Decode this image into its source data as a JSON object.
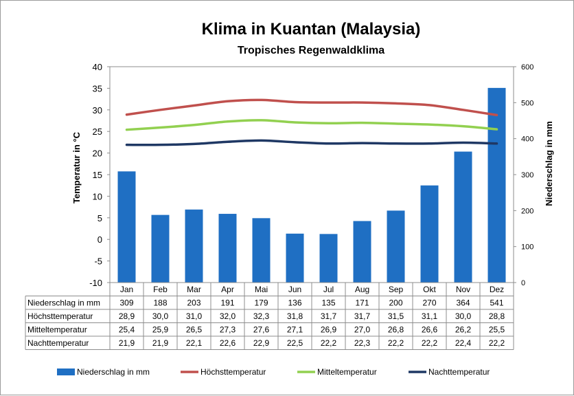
{
  "chart_data": {
    "type": "bar",
    "title": "Klima in Kuantan (Malaysia)",
    "subtitle": "Tropisches Regenwaldklima",
    "ylabel_left": "Temperatur in °C",
    "ylabel_right": "Niederschlag in mm",
    "ylim_left": [
      -10,
      40
    ],
    "yticks_left": [
      "40",
      "35",
      "30",
      "25",
      "20",
      "15",
      "10",
      "5",
      "0",
      "-5",
      "-10"
    ],
    "ylim_right": [
      0,
      600
    ],
    "yticks_right": [
      "600",
      "500",
      "400",
      "300",
      "200",
      "100",
      "0"
    ],
    "categories": [
      "Jan",
      "Feb",
      "Mar",
      "Apr",
      "Mai",
      "Jun",
      "Jul",
      "Aug",
      "Sep",
      "Okt",
      "Nov",
      "Dez"
    ],
    "series": [
      {
        "name": "Niederschlag in mm",
        "kind": "bar",
        "axis": "right",
        "color": "#1f6fc3",
        "values": [
          309,
          188,
          203,
          191,
          179,
          136,
          135,
          171,
          200,
          270,
          364,
          541
        ],
        "labels": [
          "309",
          "188",
          "203",
          "191",
          "179",
          "136",
          "135",
          "171",
          "200",
          "270",
          "364",
          "541"
        ]
      },
      {
        "name": "Höchsttemperatur",
        "kind": "line",
        "axis": "left",
        "color": "#c0504d",
        "values": [
          28.9,
          30.0,
          31.0,
          32.0,
          32.3,
          31.8,
          31.7,
          31.7,
          31.5,
          31.1,
          30.0,
          28.8
        ],
        "labels": [
          "28,9",
          "30,0",
          "31,0",
          "32,0",
          "32,3",
          "31,8",
          "31,7",
          "31,7",
          "31,5",
          "31,1",
          "30,0",
          "28,8"
        ]
      },
      {
        "name": "Mitteltemperatur",
        "kind": "line",
        "axis": "left",
        "color": "#92d050",
        "values": [
          25.4,
          25.9,
          26.5,
          27.3,
          27.6,
          27.1,
          26.9,
          27.0,
          26.8,
          26.6,
          26.2,
          25.5
        ],
        "labels": [
          "25,4",
          "25,9",
          "26,5",
          "27,3",
          "27,6",
          "27,1",
          "26,9",
          "27,0",
          "26,8",
          "26,6",
          "26,2",
          "25,5"
        ]
      },
      {
        "name": "Nachttemperatur",
        "kind": "line",
        "axis": "left",
        "color": "#1f3864",
        "values": [
          21.9,
          21.9,
          22.1,
          22.6,
          22.9,
          22.5,
          22.2,
          22.3,
          22.2,
          22.2,
          22.4,
          22.2
        ],
        "labels": [
          "21,9",
          "21,9",
          "22,1",
          "22,6",
          "22,9",
          "22,5",
          "22,2",
          "22,3",
          "22,2",
          "22,2",
          "22,4",
          "22,2"
        ]
      }
    ],
    "grid": false,
    "legend_position": "bottom",
    "data_table": true
  }
}
